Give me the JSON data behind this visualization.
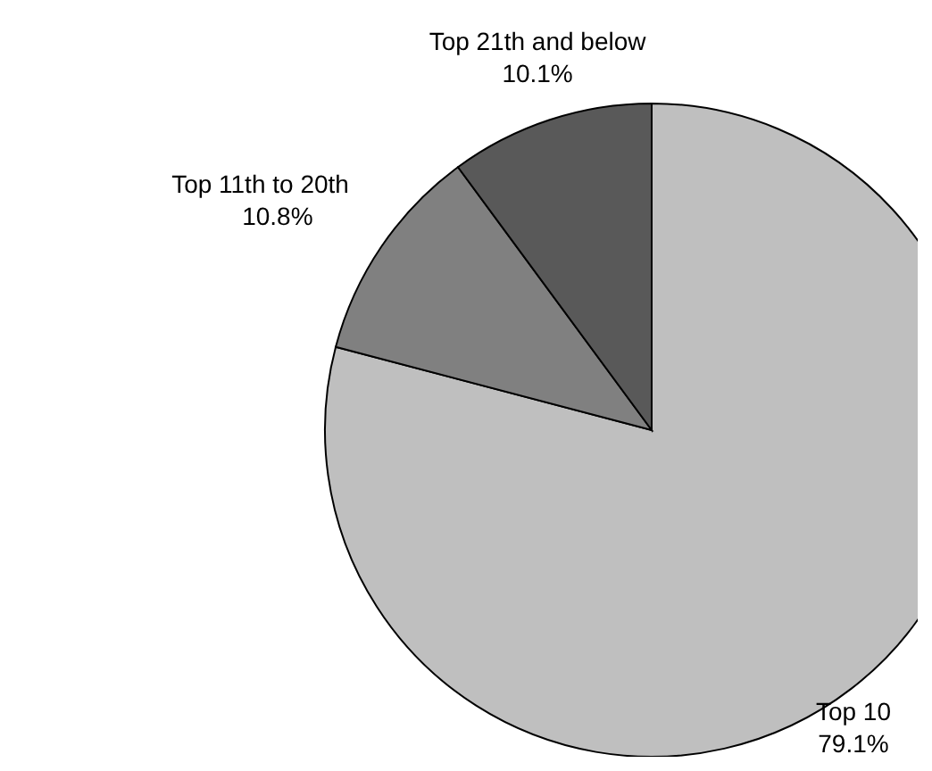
{
  "chart_data": {
    "type": "pie",
    "categories": [
      "Top 10",
      "Top 11th to 20th",
      "Top 21th and below"
    ],
    "values": [
      79.1,
      10.8,
      10.1
    ],
    "colors": [
      "#bfbfbf",
      "#808080",
      "#595959"
    ],
    "value_labels": [
      "79.1%",
      "10.8%",
      "10.1%"
    ]
  }
}
